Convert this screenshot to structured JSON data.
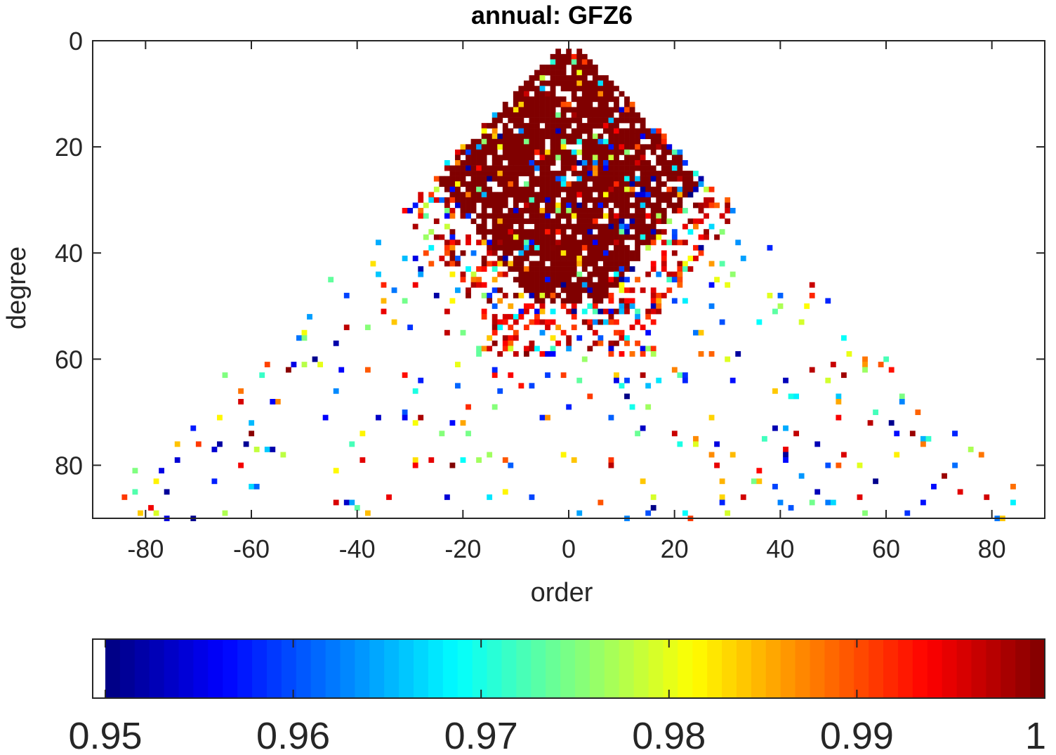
{
  "chart_data": {
    "type": "heatmap",
    "title": "annual: GFZ6",
    "xlabel": "order",
    "ylabel": "degree",
    "xlim": [
      -90,
      90
    ],
    "ylim": [
      0,
      90
    ],
    "y_reversed": true,
    "x_ticks": [
      -80,
      -60,
      -40,
      -20,
      0,
      20,
      40,
      60,
      80
    ],
    "x_tick_labels": [
      "-80",
      "-60",
      "-40",
      "-20",
      "0",
      "20",
      "40",
      "60",
      "80"
    ],
    "y_ticks": [
      0,
      20,
      40,
      60,
      80
    ],
    "y_tick_labels": [
      "0",
      "20",
      "40",
      "60",
      "80"
    ],
    "colormap": "jet",
    "below_range_color": "#ffffff",
    "colorbar": {
      "orientation": "horizontal",
      "limits": [
        0.95,
        1
      ],
      "ticks": [
        0.95,
        0.96,
        0.97,
        0.98,
        0.99,
        1
      ],
      "tick_labels": [
        "0.95",
        "0.96",
        "0.97",
        "0.98",
        "0.99",
        "1"
      ]
    },
    "cell_grid": {
      "order_range": [
        -90,
        90
      ],
      "degree_range": [
        2,
        90
      ],
      "value_range": [
        0.95,
        1
      ]
    },
    "dense_region_value": 1.0,
    "sample_cells": [
      {
        "order": -84,
        "degree": 86,
        "value": 0.991
      },
      {
        "order": -82,
        "degree": 81,
        "value": 0.975
      },
      {
        "order": -77,
        "degree": 81,
        "value": 0.955
      },
      {
        "order": -70,
        "degree": 76,
        "value": 0.991
      },
      {
        "order": -65,
        "degree": 63,
        "value": 0.975
      },
      {
        "order": -56,
        "degree": 68,
        "value": 0.956
      },
      {
        "order": -52,
        "degree": 61,
        "value": 0.955
      },
      {
        "order": -49,
        "degree": 52,
        "value": 0.964
      },
      {
        "order": -44,
        "degree": 66,
        "value": 0.963
      },
      {
        "order": -42,
        "degree": 54,
        "value": 0.997
      },
      {
        "order": -36,
        "degree": 44,
        "value": 0.966
      },
      {
        "order": -33,
        "degree": 53,
        "value": 0.984
      },
      {
        "order": -23,
        "degree": 40,
        "value": 0.99
      },
      {
        "order": -14,
        "degree": 62,
        "value": 0.958
      },
      {
        "order": 2,
        "degree": 56,
        "value": 0.958
      },
      {
        "order": 10,
        "degree": 65,
        "value": 0.97
      },
      {
        "order": 21,
        "degree": 76,
        "value": 0.97
      },
      {
        "order": 33,
        "degree": 86,
        "value": 0.996
      },
      {
        "order": 38,
        "degree": 39,
        "value": 0.958
      },
      {
        "order": 40,
        "degree": 48,
        "value": 0.961
      },
      {
        "order": 46,
        "degree": 48,
        "value": 0.992
      },
      {
        "order": 49,
        "degree": 49,
        "value": 0.958
      },
      {
        "order": 52,
        "degree": 56,
        "value": 0.969
      },
      {
        "order": 61,
        "degree": 62,
        "value": 0.993
      },
      {
        "order": 67,
        "degree": 87,
        "value": 0.957
      },
      {
        "order": 73,
        "degree": 74,
        "value": 0.958
      },
      {
        "order": 79,
        "degree": 86,
        "value": 0.996
      }
    ]
  }
}
